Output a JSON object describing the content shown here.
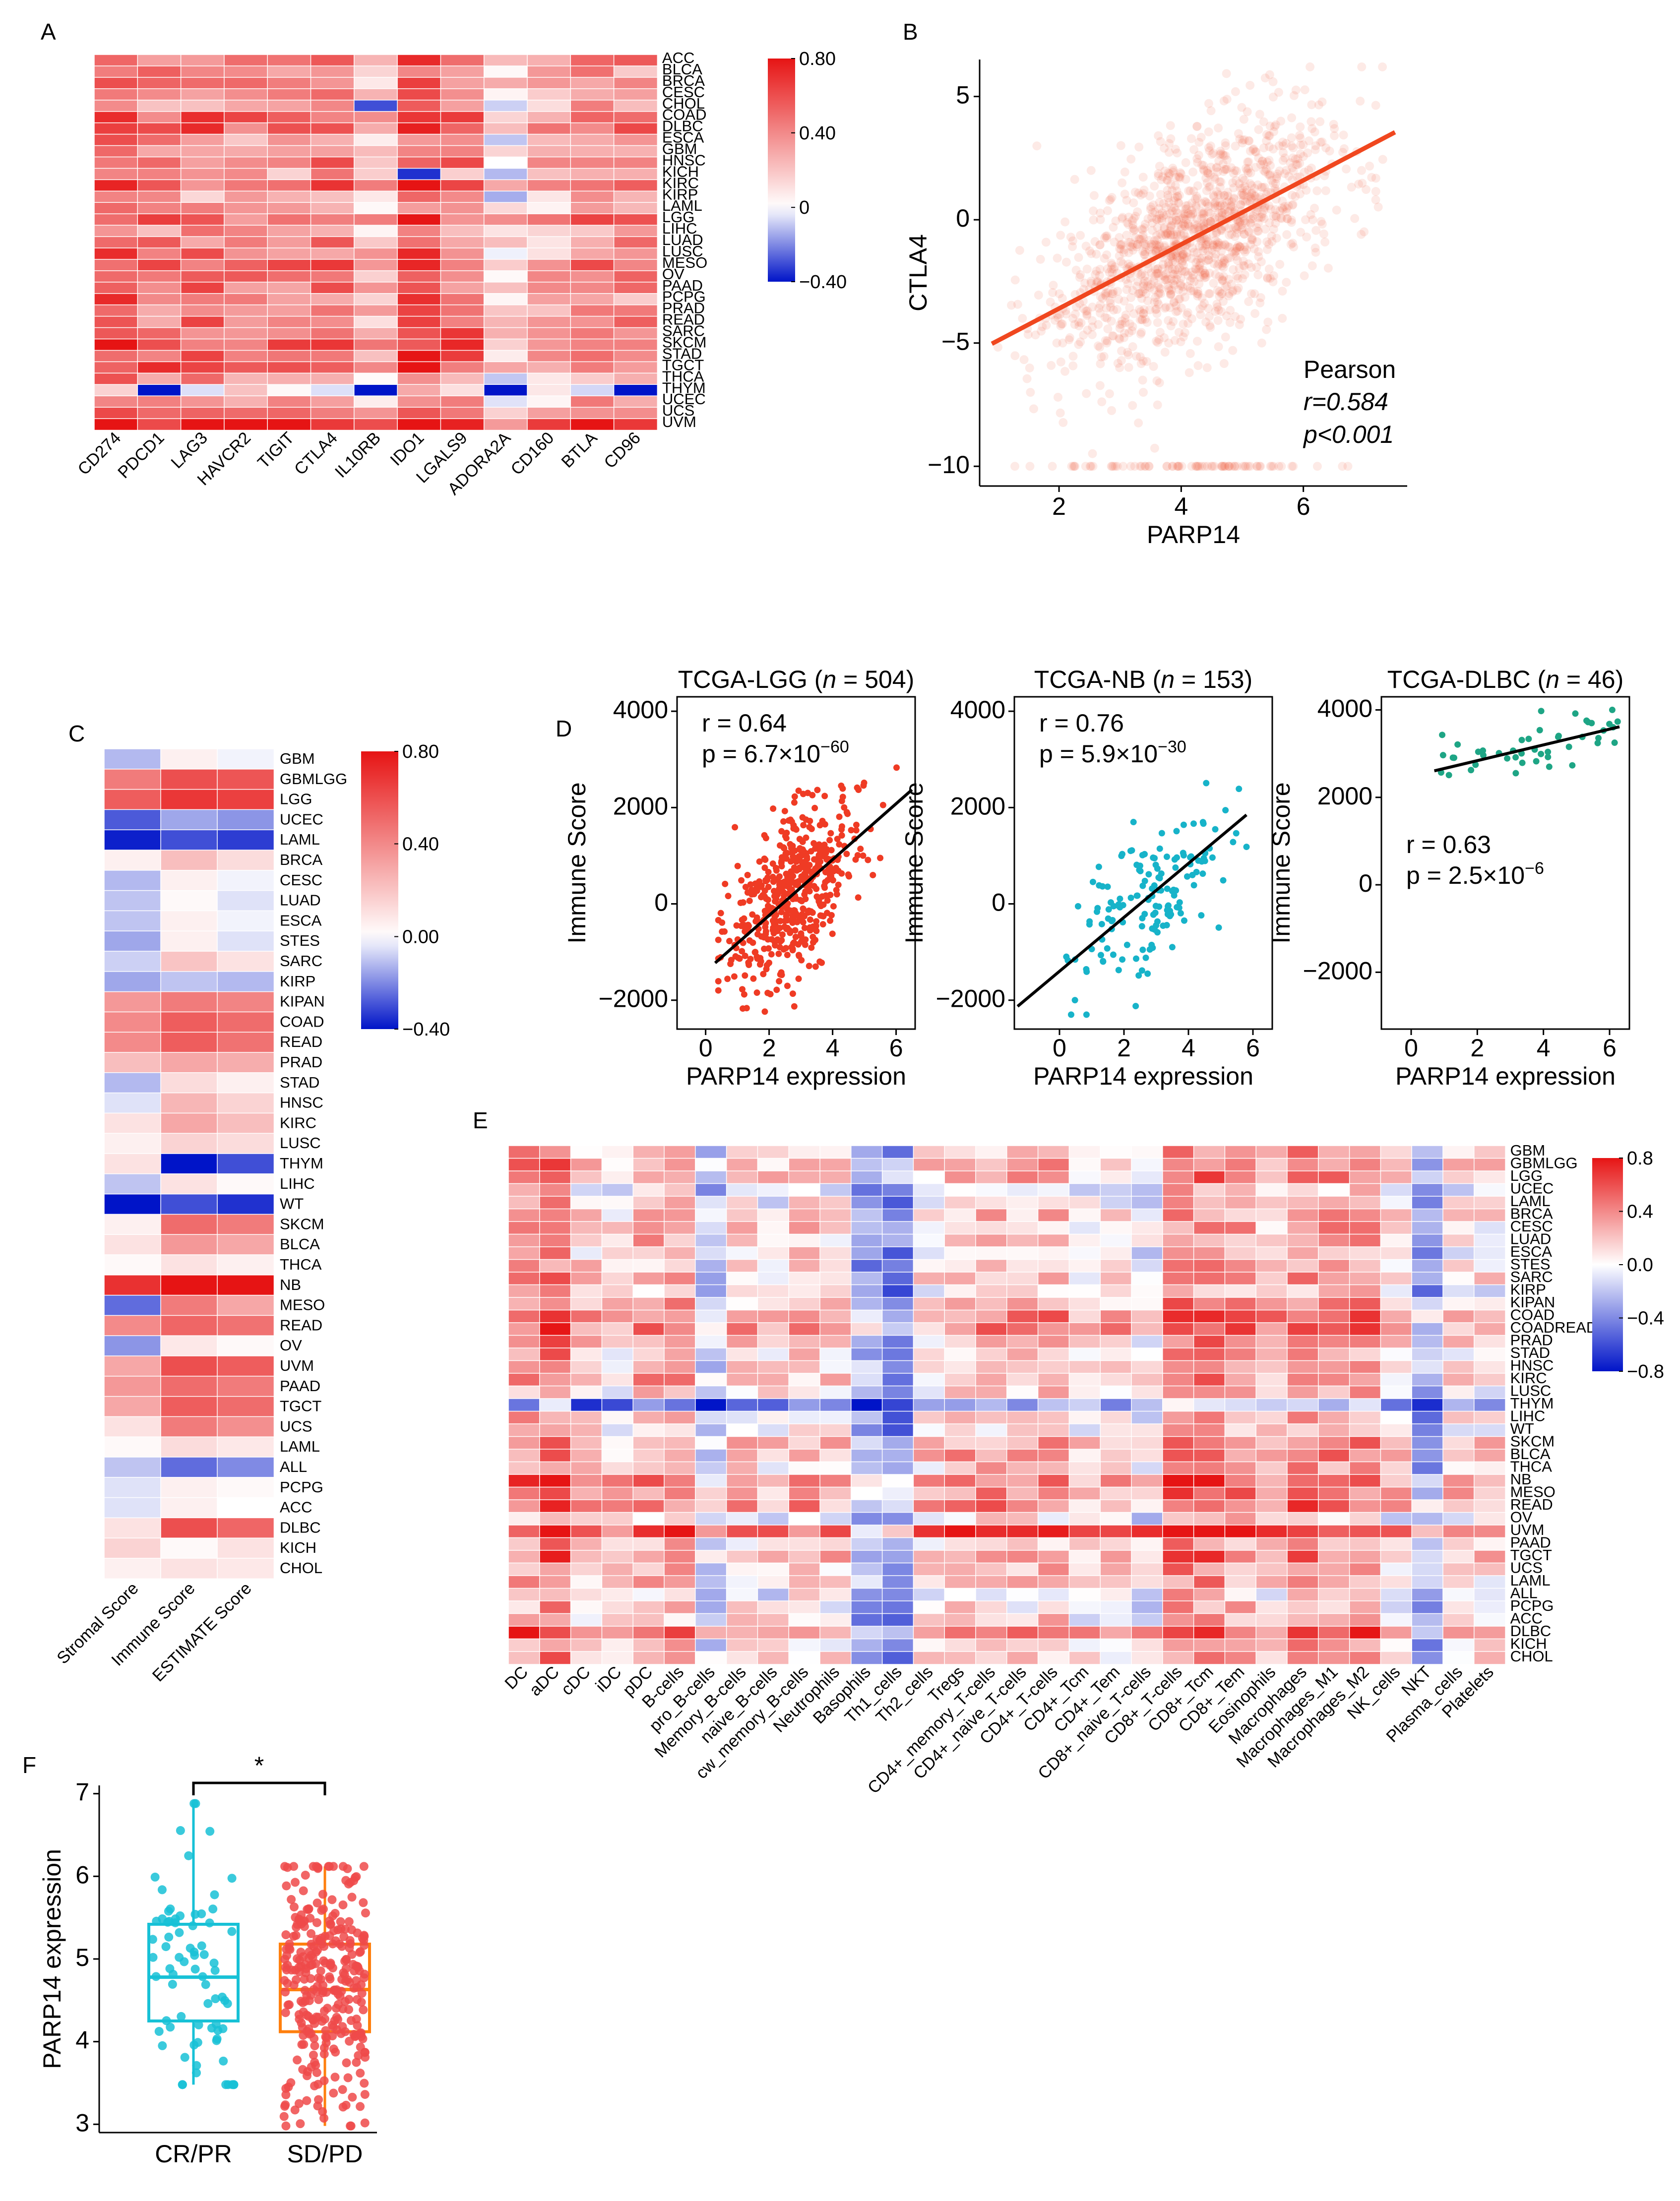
{
  "figure": {
    "panel_labels": [
      "A",
      "B",
      "C",
      "D",
      "E",
      "F"
    ]
  },
  "chart_data": [
    {
      "id": "A",
      "type": "heatmap",
      "title": "",
      "columns": [
        "CD274",
        "PDCD1",
        "LAG3",
        "HAVCR2",
        "TIGIT",
        "CTLA4",
        "IL10RB",
        "IDO1",
        "LGALS9",
        "ADORA2A",
        "CD160",
        "BTLA",
        "CD96"
      ],
      "rows": [
        "ACC",
        "BLCA",
        "BRCA",
        "CESC",
        "CHOL",
        "COAD",
        "DLBC",
        "ESCA",
        "GBM",
        "HNSC",
        "KICH",
        "KIRC",
        "KIRP",
        "LAML",
        "LGG",
        "LIHC",
        "LUAD",
        "LUSC",
        "MESO",
        "OV",
        "PAAD",
        "PCPG",
        "PRAD",
        "READ",
        "SARC",
        "SKCM",
        "STAD",
        "TGCT",
        "THCA",
        "THYM",
        "UCEC",
        "UCS",
        "UVM"
      ],
      "col_base": [
        0.55,
        0.4,
        0.42,
        0.38,
        0.42,
        0.42,
        0.18,
        0.55,
        0.4,
        0.1,
        0.22,
        0.38,
        0.35
      ],
      "row_offset": [
        0.05,
        0.0,
        0.05,
        0.0,
        -0.1,
        0.15,
        0.15,
        -0.05,
        -0.08,
        0.05,
        -0.1,
        0.1,
        -0.12,
        -0.05,
        0.12,
        -0.05,
        0.02,
        0.02,
        0.1,
        0.05,
        0.05,
        0.0,
        0.0,
        0.05,
        0.12,
        0.18,
        0.12,
        0.15,
        -0.05,
        -0.3,
        -0.08,
        0.15,
        0.3
      ],
      "colorbar": {
        "min": -0.4,
        "max": 0.8,
        "ticks": [
          "0.80",
          "0.40",
          "0",
          "−0.40"
        ]
      }
    },
    {
      "id": "B",
      "type": "scatter",
      "xlabel": "PARP14",
      "ylabel": "CTLA4",
      "xlim": [
        0.7,
        7.7
      ],
      "ylim": [
        -10.8,
        6.5
      ],
      "xticks": [
        "2",
        "4",
        "6"
      ],
      "yticks": [
        "5",
        "0",
        "−5",
        "−10"
      ],
      "fit": {
        "slope": 1.3,
        "intercept": -6.2
      },
      "n_points": 1400,
      "annotation": {
        "method": "Pearson",
        "r": "r=0.584",
        "p": "p<0.001"
      }
    },
    {
      "id": "C",
      "type": "heatmap",
      "columns": [
        "Stromal Score",
        "Immune Score",
        "ESTIMATE Score"
      ],
      "rows": [
        "GBM",
        "GBMLGG",
        "LGG",
        "UCEC",
        "LAML",
        "BRCA",
        "CESC",
        "LUAD",
        "ESCA",
        "STES",
        "SARC",
        "KIRP",
        "KIPAN",
        "COAD",
        "READ",
        "PRAD",
        "STAD",
        "HNSC",
        "KIRC",
        "LUSC",
        "THYM",
        "LIHC",
        "WT",
        "SKCM",
        "BLCA",
        "THCA",
        "NB",
        "MESO",
        "READ",
        "OV",
        "UVM",
        "PAAD",
        "TGCT",
        "UCS",
        "LAML",
        "ALL",
        "PCPG",
        "ACC",
        "DLBC",
        "KICH",
        "CHOL"
      ],
      "values": [
        [
          -0.12,
          0.05,
          -0.02
        ],
        [
          0.45,
          0.6,
          0.58
        ],
        [
          0.55,
          0.68,
          0.65
        ],
        [
          -0.28,
          -0.15,
          -0.18
        ],
        [
          -0.38,
          -0.3,
          -0.33
        ],
        [
          0.05,
          0.22,
          0.12
        ],
        [
          -0.12,
          0.05,
          -0.02
        ],
        [
          -0.1,
          0.02,
          -0.05
        ],
        [
          -0.1,
          0.05,
          -0.02
        ],
        [
          -0.15,
          0.05,
          -0.05
        ],
        [
          -0.08,
          0.2,
          0.1
        ],
        [
          -0.15,
          -0.1,
          -0.12
        ],
        [
          0.35,
          0.45,
          0.42
        ],
        [
          0.4,
          0.55,
          0.5
        ],
        [
          0.4,
          0.55,
          0.48
        ],
        [
          0.22,
          0.3,
          0.28
        ],
        [
          -0.12,
          0.12,
          0.05
        ],
        [
          -0.05,
          0.25,
          0.15
        ],
        [
          0.1,
          0.3,
          0.22
        ],
        [
          0.05,
          0.15,
          0.12
        ],
        [
          0.1,
          -0.4,
          -0.3
        ],
        [
          -0.1,
          0.1,
          0.02
        ],
        [
          -0.4,
          -0.3,
          -0.35
        ],
        [
          0.05,
          0.5,
          0.45
        ],
        [
          0.1,
          0.35,
          0.3
        ],
        [
          0.02,
          0.1,
          0.05
        ],
        [
          0.7,
          0.8,
          0.8
        ],
        [
          -0.25,
          0.45,
          0.3
        ],
        [
          0.4,
          0.52,
          0.48
        ],
        [
          -0.18,
          0.08,
          0.02
        ],
        [
          0.3,
          0.6,
          0.55
        ],
        [
          0.35,
          0.5,
          0.45
        ],
        [
          0.3,
          0.55,
          0.5
        ],
        [
          0.1,
          0.45,
          0.38
        ],
        [
          0.02,
          0.12,
          0.08
        ],
        [
          -0.1,
          -0.25,
          -0.2
        ],
        [
          -0.05,
          0.05,
          0.02
        ],
        [
          -0.05,
          0.05,
          0.0
        ],
        [
          0.1,
          0.6,
          0.52
        ],
        [
          0.15,
          0.02,
          0.1
        ],
        [
          0.05,
          0.1,
          0.08
        ]
      ],
      "colorbar": {
        "min": -0.4,
        "max": 0.8,
        "ticks": [
          "0.80",
          "0.40",
          "0.00",
          "−0.40"
        ]
      }
    },
    {
      "id": "D",
      "type": "scatter",
      "subplots": [
        {
          "title_pre": "TCGA-LGG (",
          "n_var": "n",
          "title_post": " = 504)",
          "r": "r = 0.64",
          "p_pre": "p = 6.7×10",
          "p_exp": "−60",
          "xlabel": "PARP14 expression",
          "ylabel": "Immune Score",
          "xlim": [
            -0.9,
            6.6
          ],
          "ylim": [
            -2600,
            4300
          ],
          "xticks": [
            "0",
            "2",
            "4",
            "6"
          ],
          "yticks": [
            "4000",
            "2000",
            "0",
            "−2000"
          ],
          "fit": {
            "slope": 580,
            "intercept": -1400
          },
          "fit_x": [
            0.3,
            6.5
          ],
          "point_x": [
            0.4,
            6.4
          ],
          "n_points": 504,
          "color": "#ef3b24",
          "ann_pos": "top-left"
        },
        {
          "title_pre": "TCGA-NB (",
          "n_var": "n",
          "title_post": " = 153)",
          "r": "r = 0.76",
          "p_pre": "p = 5.9×10",
          "p_exp": "−30",
          "xlabel": "PARP14 expression",
          "ylabel": "Immune Score",
          "xlim": [
            -1.4,
            6.6
          ],
          "ylim": [
            -2600,
            4300
          ],
          "xticks": [
            "0",
            "2",
            "4",
            "6"
          ],
          "yticks": [
            "4000",
            "2000",
            "0",
            "−2000"
          ],
          "fit": {
            "slope": 560,
            "intercept": -1400
          },
          "fit_x": [
            -1.3,
            5.8
          ],
          "point_x": [
            -1.2,
            5.8
          ],
          "n_points": 153,
          "color": "#17b3c9",
          "ann_pos": "top-left"
        },
        {
          "title_pre": "TCGA-DLBC (",
          "n_var": "n",
          "title_post": " = 46)",
          "r": "r = 0.63",
          "p_pre": "p = 2.5×10",
          "p_exp": "−6",
          "xlabel": "PARP14 expression",
          "ylabel": "Immune Score",
          "xlim": [
            -0.9,
            6.6
          ],
          "ylim": [
            -3300,
            4300
          ],
          "xticks": [
            "0",
            "2",
            "4",
            "6"
          ],
          "yticks": [
            "4000",
            "2000",
            "0",
            "−2000"
          ],
          "fit": {
            "slope": 180,
            "intercept": 2480
          },
          "fit_x": [
            0.7,
            6.3
          ],
          "point_x": [
            0.8,
            6.3
          ],
          "n_points": 46,
          "color": "#1ea585",
          "ann_pos": "middle-left"
        }
      ]
    },
    {
      "id": "E",
      "type": "heatmap",
      "columns": [
        "DC",
        "aDC",
        "cDC",
        "iDC",
        "pDC",
        "B-cells",
        "pro_B-cells",
        "Memory_B-cells",
        "naive_B-cells",
        "cw_memory_B-cells",
        "Neutrophils",
        "Basophils",
        "Th1_cells",
        "Th2_cells",
        "Tregs",
        "CD4+_memory_T-cells",
        "CD4+_naive_T-cells",
        "CD4+_T-cells",
        "CD4+_Tcm",
        "CD4+_Tem",
        "CD8+_naive_T-cells",
        "CD8+_T-cells",
        "CD8+_Tcm",
        "CD8+_Tem",
        "Eosinophils",
        "Macrophages",
        "Macrophages_M1",
        "Macrophages_M2",
        "NK_cells",
        "NKT",
        "Plasma_cells",
        "Platelets"
      ],
      "rows": [
        "GBM",
        "GBMLGG",
        "LGG",
        "UCEC",
        "LAML",
        "BRCA",
        "CESC",
        "LUAD",
        "ESCA",
        "STES",
        "SARC",
        "KIRP",
        "KIPAN",
        "COAD",
        "COADREAD",
        "PRAD",
        "STAD",
        "HNSC",
        "KIRC",
        "LUSC",
        "THYM",
        "LIHC",
        "WT",
        "SKCM",
        "BLCA",
        "THCA",
        "NB",
        "MESO",
        "READ",
        "OV",
        "UVM",
        "PAAD",
        "TGCT",
        "UCS",
        "LAML",
        "ALL",
        "PCPG",
        "ACC",
        "DLBC",
        "KICH",
        "CHOL"
      ],
      "col_base": [
        0.35,
        0.5,
        0.2,
        0.1,
        0.3,
        0.3,
        -0.2,
        0.15,
        0.1,
        0.2,
        0.1,
        -0.3,
        -0.4,
        0.1,
        0.25,
        0.25,
        0.2,
        0.25,
        0.05,
        0.15,
        0.0,
        0.45,
        0.45,
        0.35,
        0.2,
        0.4,
        0.35,
        0.35,
        0.1,
        -0.35,
        0.1,
        0.1
      ],
      "row_offset": [
        0.0,
        0.1,
        0.1,
        -0.15,
        -0.1,
        0.0,
        0.0,
        0.0,
        -0.05,
        -0.05,
        0.0,
        -0.1,
        0.05,
        0.2,
        0.2,
        0.05,
        0.0,
        0.05,
        0.05,
        -0.05,
        -0.4,
        -0.05,
        -0.1,
        0.1,
        0.1,
        0.0,
        0.25,
        0.15,
        0.2,
        -0.1,
        0.35,
        0.0,
        0.15,
        0.0,
        0.0,
        -0.15,
        -0.1,
        -0.05,
        0.3,
        -0.05,
        0.0
      ],
      "colorbar": {
        "min": -0.8,
        "max": 0.8,
        "ticks": [
          "0.8",
          "0.4",
          "0.0",
          "−0.4",
          "−0.8"
        ]
      }
    },
    {
      "id": "F",
      "type": "box",
      "categories": [
        "CR/PR",
        "SD/PD"
      ],
      "ylabel": "PARP14 expression",
      "ylim": [
        2.9,
        7.1
      ],
      "yticks": [
        "7",
        "6",
        "5",
        "4",
        "3"
      ],
      "boxes": [
        {
          "q1": 4.25,
          "median": 4.78,
          "q3": 5.42,
          "whisker_low": 3.48,
          "whisker_high": 6.88,
          "color": "#17c1d6",
          "n_points": 75
        },
        {
          "q1": 4.12,
          "median": 4.63,
          "q3": 5.18,
          "whisker_low": 2.98,
          "whisker_high": 6.12,
          "color": "#ff7f0e",
          "point_color": "#ef4a4a",
          "n_points": 300
        }
      ],
      "significance": "*"
    }
  ]
}
